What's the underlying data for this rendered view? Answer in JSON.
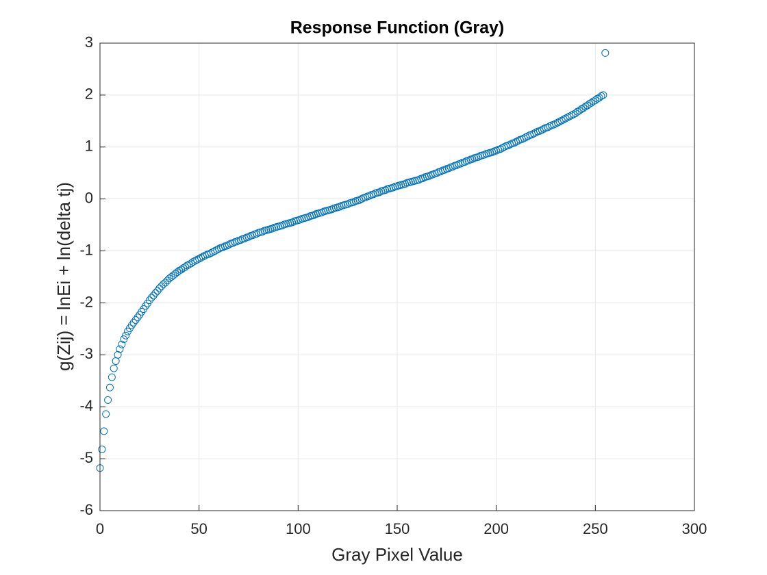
{
  "chart_data": {
    "type": "scatter",
    "title": "Response Function (Gray)",
    "x_label": "Gray Pixel Value",
    "y_label": "g(Zij) = lnEi + ln(delta tj)",
    "color": "#0072bd",
    "grid": true,
    "xlim": [
      0,
      300
    ],
    "xticks": [
      0,
      50,
      100,
      150,
      200,
      250,
      300
    ],
    "ylim": [
      -6,
      3
    ],
    "yticks": [
      -6,
      -5,
      -4,
      -3,
      -2,
      -1,
      0,
      1,
      2,
      3
    ],
    "x": [
      0,
      1,
      2,
      3,
      4,
      5,
      6,
      7,
      8,
      9,
      10,
      11,
      12,
      13,
      14,
      15,
      16,
      17,
      18,
      19,
      20,
      21,
      22,
      23,
      24,
      25,
      26,
      27,
      28,
      29,
      30,
      31,
      32,
      33,
      34,
      35,
      36,
      37,
      38,
      39,
      40,
      41,
      42,
      43,
      44,
      45,
      46,
      47,
      48,
      49,
      50,
      51,
      52,
      53,
      54,
      55,
      56,
      57,
      58,
      59,
      60,
      61,
      62,
      63,
      64,
      65,
      66,
      67,
      68,
      69,
      70,
      71,
      72,
      73,
      74,
      75,
      76,
      77,
      78,
      79,
      80,
      81,
      82,
      83,
      84,
      85,
      86,
      87,
      88,
      89,
      90,
      91,
      92,
      93,
      94,
      95,
      96,
      97,
      98,
      99,
      100,
      101,
      102,
      103,
      104,
      105,
      106,
      107,
      108,
      109,
      110,
      111,
      112,
      113,
      114,
      115,
      116,
      117,
      118,
      119,
      120,
      121,
      122,
      123,
      124,
      125,
      126,
      127,
      128,
      129,
      130,
      131,
      132,
      133,
      134,
      135,
      136,
      137,
      138,
      139,
      140,
      141,
      142,
      143,
      144,
      145,
      146,
      147,
      148,
      149,
      150,
      151,
      152,
      153,
      154,
      155,
      156,
      157,
      158,
      159,
      160,
      161,
      162,
      163,
      164,
      165,
      166,
      167,
      168,
      169,
      170,
      171,
      172,
      173,
      174,
      175,
      176,
      177,
      178,
      179,
      180,
      181,
      182,
      183,
      184,
      185,
      186,
      187,
      188,
      189,
      190,
      191,
      192,
      193,
      194,
      195,
      196,
      197,
      198,
      199,
      200,
      201,
      202,
      203,
      204,
      205,
      206,
      207,
      208,
      209,
      210,
      211,
      212,
      213,
      214,
      215,
      216,
      217,
      218,
      219,
      220,
      221,
      222,
      223,
      224,
      225,
      226,
      227,
      228,
      229,
      230,
      231,
      232,
      233,
      234,
      235,
      236,
      237,
      238,
      239,
      240,
      241,
      242,
      243,
      244,
      245,
      246,
      247,
      248,
      249,
      250,
      251,
      252,
      253,
      254,
      255
    ],
    "values": [
      -5.18,
      -4.82,
      -4.47,
      -4.14,
      -3.87,
      -3.63,
      -3.43,
      -3.26,
      -3.12,
      -3.0,
      -2.89,
      -2.8,
      -2.7,
      -2.63,
      -2.55,
      -2.49,
      -2.43,
      -2.38,
      -2.33,
      -2.28,
      -2.23,
      -2.17,
      -2.12,
      -2.06,
      -2.01,
      -1.95,
      -1.9,
      -1.86,
      -1.81,
      -1.77,
      -1.72,
      -1.68,
      -1.64,
      -1.61,
      -1.57,
      -1.53,
      -1.5,
      -1.47,
      -1.44,
      -1.41,
      -1.38,
      -1.36,
      -1.33,
      -1.31,
      -1.28,
      -1.26,
      -1.24,
      -1.21,
      -1.19,
      -1.17,
      -1.15,
      -1.13,
      -1.11,
      -1.09,
      -1.07,
      -1.06,
      -1.04,
      -1.02,
      -1.0,
      -0.98,
      -0.96,
      -0.94,
      -0.93,
      -0.91,
      -0.9,
      -0.88,
      -0.86,
      -0.85,
      -0.83,
      -0.82,
      -0.8,
      -0.79,
      -0.77,
      -0.76,
      -0.74,
      -0.73,
      -0.71,
      -0.7,
      -0.68,
      -0.67,
      -0.65,
      -0.64,
      -0.63,
      -0.61,
      -0.6,
      -0.59,
      -0.58,
      -0.57,
      -0.55,
      -0.54,
      -0.53,
      -0.52,
      -0.51,
      -0.49,
      -0.48,
      -0.47,
      -0.46,
      -0.45,
      -0.43,
      -0.42,
      -0.41,
      -0.4,
      -0.38,
      -0.37,
      -0.36,
      -0.35,
      -0.33,
      -0.32,
      -0.31,
      -0.29,
      -0.28,
      -0.27,
      -0.26,
      -0.24,
      -0.23,
      -0.22,
      -0.21,
      -0.2,
      -0.18,
      -0.17,
      -0.16,
      -0.15,
      -0.13,
      -0.12,
      -0.11,
      -0.1,
      -0.08,
      -0.07,
      -0.06,
      -0.04,
      -0.03,
      -0.02,
      0.0,
      0.02,
      0.03,
      0.05,
      0.06,
      0.08,
      0.09,
      0.11,
      0.12,
      0.13,
      0.15,
      0.16,
      0.17,
      0.19,
      0.2,
      0.21,
      0.22,
      0.24,
      0.25,
      0.26,
      0.27,
      0.28,
      0.29,
      0.31,
      0.32,
      0.33,
      0.34,
      0.35,
      0.36,
      0.37,
      0.39,
      0.4,
      0.42,
      0.43,
      0.44,
      0.46,
      0.47,
      0.49,
      0.5,
      0.52,
      0.53,
      0.55,
      0.56,
      0.58,
      0.59,
      0.61,
      0.62,
      0.64,
      0.65,
      0.67,
      0.68,
      0.7,
      0.71,
      0.73,
      0.74,
      0.76,
      0.77,
      0.79,
      0.8,
      0.81,
      0.83,
      0.84,
      0.85,
      0.87,
      0.88,
      0.89,
      0.9,
      0.92,
      0.93,
      0.95,
      0.96,
      0.98,
      1.0,
      1.02,
      1.03,
      1.05,
      1.07,
      1.08,
      1.1,
      1.12,
      1.14,
      1.15,
      1.17,
      1.19,
      1.21,
      1.23,
      1.24,
      1.26,
      1.28,
      1.3,
      1.31,
      1.33,
      1.35,
      1.37,
      1.38,
      1.4,
      1.42,
      1.43,
      1.45,
      1.47,
      1.49,
      1.51,
      1.53,
      1.55,
      1.57,
      1.59,
      1.61,
      1.63,
      1.65,
      1.68,
      1.7,
      1.73,
      1.75,
      1.78,
      1.8,
      1.83,
      1.85,
      1.88,
      1.9,
      1.93,
      1.95,
      1.98,
      2.0,
      2.81
    ]
  }
}
